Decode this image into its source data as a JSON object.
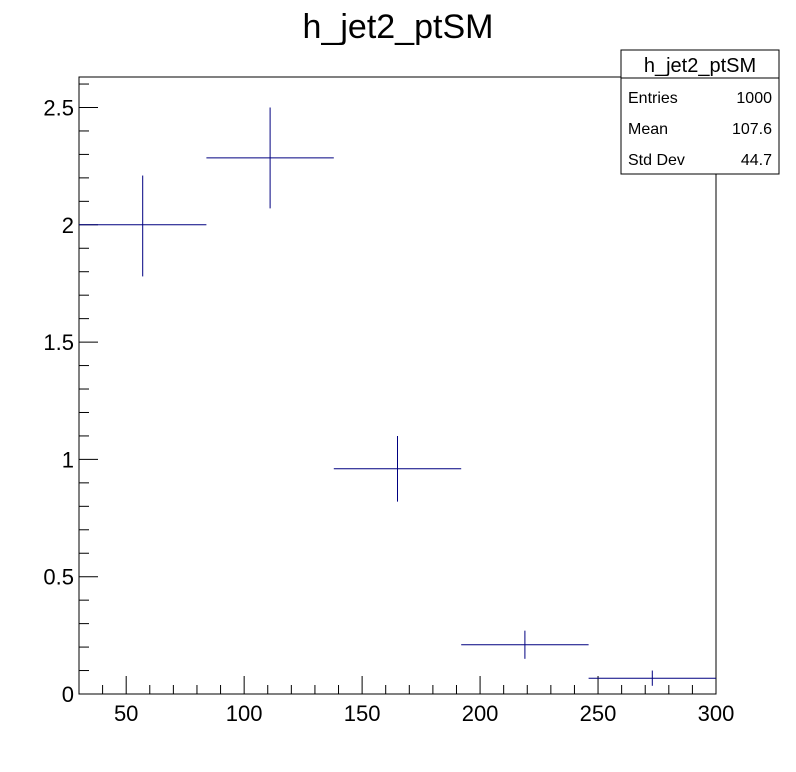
{
  "chart_data": {
    "type": "scatter",
    "title": "h_jet2_ptSM",
    "xlabel": "",
    "ylabel": "",
    "xlim": [
      30,
      300
    ],
    "ylim": [
      0,
      2.63
    ],
    "x_ticks": [
      50,
      100,
      150,
      200,
      250,
      300
    ],
    "y_ticks": [
      0,
      0.5,
      1,
      1.5,
      2,
      2.5
    ],
    "x_tick_labels": [
      "50",
      "100",
      "150",
      "200",
      "250",
      "300"
    ],
    "y_tick_labels": [
      "0",
      "0.5",
      "1",
      "1.5",
      "2",
      "2.5"
    ],
    "series": [
      {
        "color": "#000080",
        "points": [
          {
            "x": 57,
            "xlow": 30,
            "xhigh": 84,
            "y": 2.0,
            "ylow": 1.78,
            "yhigh": 2.21
          },
          {
            "x": 111,
            "xlow": 84,
            "xhigh": 138,
            "y": 2.285,
            "ylow": 2.07,
            "yhigh": 2.5
          },
          {
            "x": 165,
            "xlow": 138,
            "xhigh": 192,
            "y": 0.96,
            "ylow": 0.82,
            "yhigh": 1.1
          },
          {
            "x": 219,
            "xlow": 192,
            "xhigh": 246,
            "y": 0.21,
            "ylow": 0.15,
            "yhigh": 0.27
          },
          {
            "x": 273,
            "xlow": 246,
            "xhigh": 300,
            "y": 0.067,
            "ylow": 0.035,
            "yhigh": 0.1
          }
        ]
      }
    ],
    "stats_box": {
      "title": "h_jet2_ptSM",
      "rows": [
        {
          "label": "Entries",
          "value": "1000"
        },
        {
          "label": "Mean",
          "value": "107.6"
        },
        {
          "label": "Std Dev",
          "value": "44.7"
        }
      ],
      "position": "top-right"
    }
  }
}
